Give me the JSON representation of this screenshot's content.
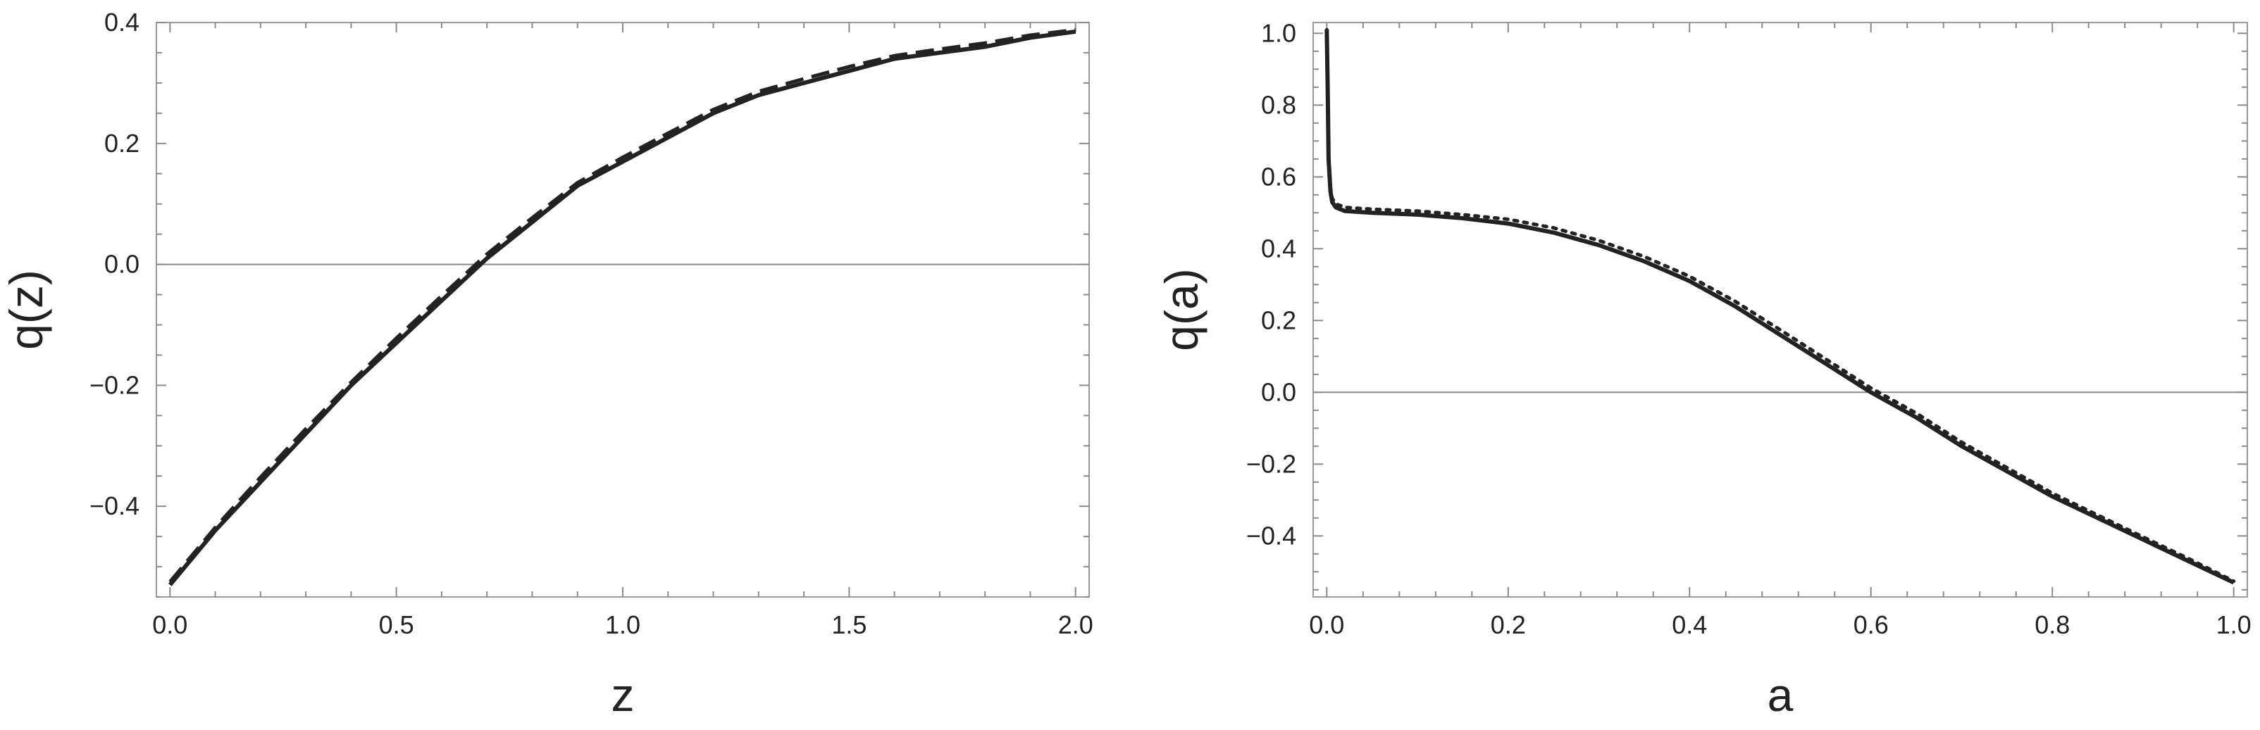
{
  "chart_data": [
    {
      "type": "line",
      "xlabel": "z",
      "ylabel": "q(z)",
      "xlim": [
        -0.03,
        2.03
      ],
      "ylim": [
        -0.55,
        0.4
      ],
      "xticks": [
        0.0,
        0.5,
        1.0,
        1.5,
        2.0
      ],
      "xtick_labels": [
        "0.0",
        "0.5",
        "1.0",
        "1.5",
        "2.0"
      ],
      "yticks": [
        -0.4,
        -0.2,
        0.0,
        0.2,
        0.4
      ],
      "ytick_labels": [
        "−0.4",
        "−0.2",
        "0.0",
        "0.2",
        "0.4"
      ],
      "zero_line": true,
      "grid": false,
      "series": [
        {
          "style": "solid",
          "color": "#222222",
          "x": [
            0.0,
            0.1,
            0.2,
            0.3,
            0.4,
            0.5,
            0.6,
            0.7,
            0.8,
            0.9,
            1.0,
            1.1,
            1.2,
            1.3,
            1.4,
            1.5,
            1.6,
            1.7,
            1.8,
            1.9,
            2.0
          ],
          "y": [
            -0.53,
            -0.44,
            -0.36,
            -0.28,
            -0.2,
            -0.13,
            -0.06,
            0.01,
            0.07,
            0.13,
            0.17,
            0.21,
            0.25,
            0.28,
            0.3,
            0.32,
            0.34,
            0.35,
            0.36,
            0.375,
            0.385
          ]
        },
        {
          "style": "dashed",
          "color": "#222222",
          "x": [
            0.0,
            0.1,
            0.2,
            0.3,
            0.4,
            0.5,
            0.6,
            0.7,
            0.8,
            0.9,
            1.0,
            1.1,
            1.2,
            1.3,
            1.4,
            1.5,
            1.6,
            1.7,
            1.8,
            1.9,
            2.0
          ],
          "y": [
            -0.525,
            -0.435,
            -0.352,
            -0.272,
            -0.195,
            -0.122,
            -0.052,
            0.017,
            0.077,
            0.135,
            0.177,
            0.217,
            0.256,
            0.286,
            0.307,
            0.327,
            0.345,
            0.356,
            0.366,
            0.379,
            0.388
          ]
        }
      ]
    },
    {
      "type": "line",
      "xlabel": "a",
      "ylabel": "q(a)",
      "xlim": [
        -0.015,
        1.015
      ],
      "ylim": [
        -0.57,
        1.03
      ],
      "xticks": [
        0.0,
        0.2,
        0.4,
        0.6,
        0.8,
        1.0
      ],
      "xtick_labels": [
        "0.0",
        "0.2",
        "0.4",
        "0.6",
        "0.8",
        "1.0"
      ],
      "yticks": [
        -0.4,
        -0.2,
        0.0,
        0.2,
        0.4,
        0.6,
        0.8,
        1.0
      ],
      "ytick_labels": [
        "−0.4",
        "−0.2",
        "0.0",
        "0.2",
        "0.4",
        "0.6",
        "0.8",
        "1.0"
      ],
      "zero_line": true,
      "grid": false,
      "series": [
        {
          "style": "solid",
          "color": "#222222",
          "x": [
            0.0,
            0.001,
            0.002,
            0.004,
            0.006,
            0.01,
            0.02,
            0.05,
            0.1,
            0.15,
            0.2,
            0.25,
            0.3,
            0.35,
            0.4,
            0.45,
            0.5,
            0.55,
            0.6,
            0.65,
            0.7,
            0.75,
            0.8,
            0.85,
            0.9,
            0.95,
            1.0
          ],
          "y": [
            1.01,
            0.85,
            0.65,
            0.56,
            0.53,
            0.515,
            0.505,
            0.5,
            0.495,
            0.485,
            0.47,
            0.445,
            0.41,
            0.365,
            0.31,
            0.24,
            0.16,
            0.08,
            0.0,
            -0.07,
            -0.15,
            -0.22,
            -0.29,
            -0.35,
            -0.41,
            -0.47,
            -0.53
          ]
        },
        {
          "style": "dotted",
          "color": "#222222",
          "x": [
            0.0,
            0.001,
            0.002,
            0.004,
            0.006,
            0.01,
            0.02,
            0.05,
            0.1,
            0.15,
            0.2,
            0.25,
            0.3,
            0.35,
            0.4,
            0.45,
            0.5,
            0.55,
            0.6,
            0.65,
            0.7,
            0.75,
            0.8,
            0.85,
            0.9,
            0.95,
            1.0
          ],
          "y": [
            1.01,
            0.86,
            0.66,
            0.57,
            0.54,
            0.525,
            0.515,
            0.51,
            0.505,
            0.495,
            0.482,
            0.458,
            0.423,
            0.378,
            0.323,
            0.254,
            0.174,
            0.093,
            0.012,
            -0.058,
            -0.139,
            -0.21,
            -0.281,
            -0.342,
            -0.403,
            -0.463,
            -0.526
          ]
        }
      ]
    }
  ]
}
